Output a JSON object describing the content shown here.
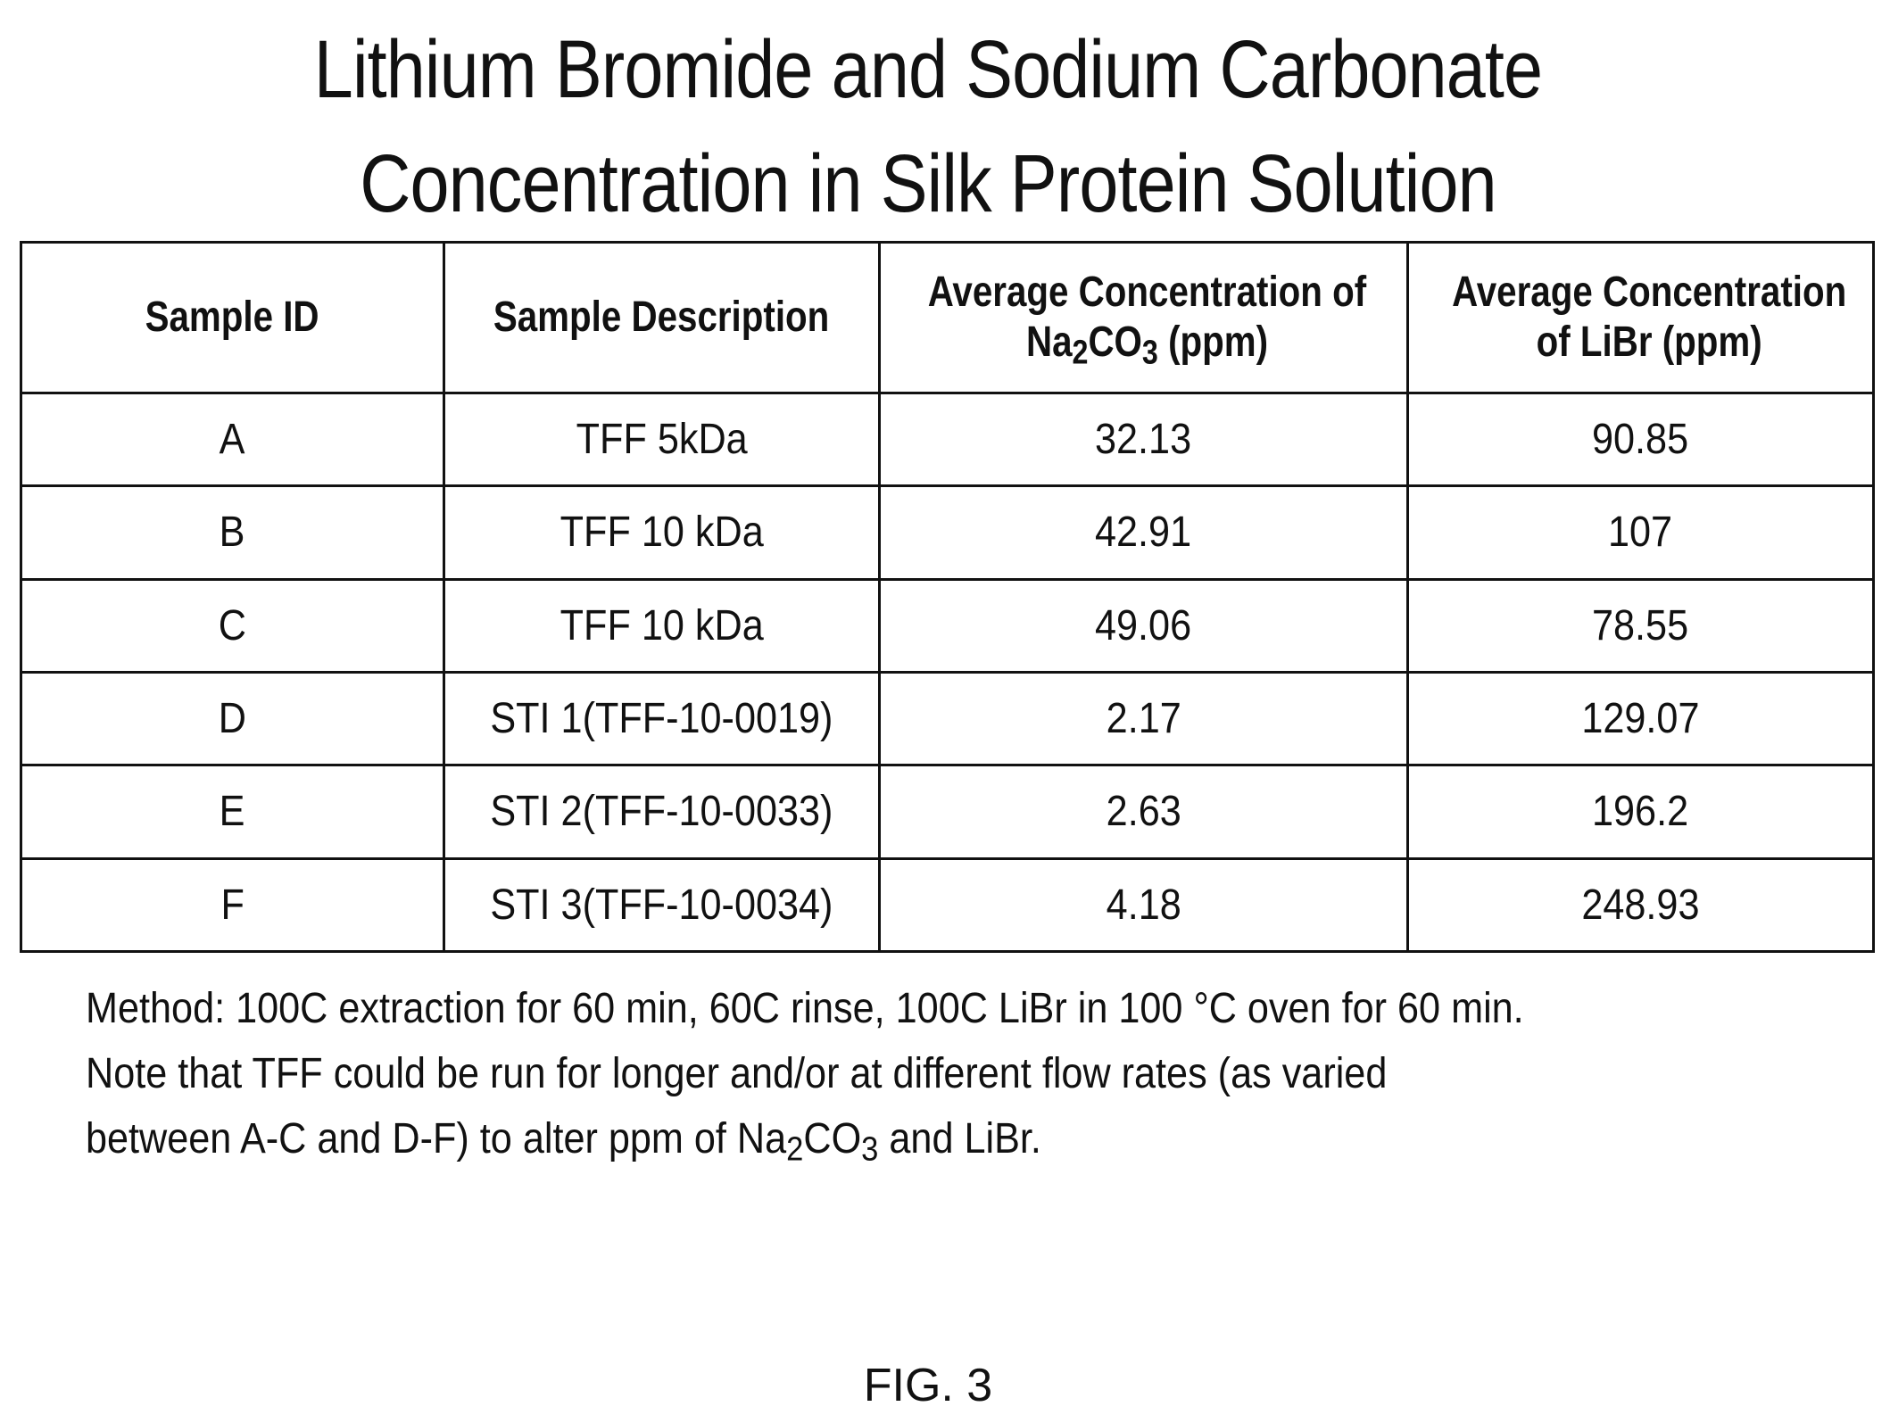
{
  "title": {
    "line1": "Lithium Bromide and Sodium Carbonate",
    "line2": "Concentration in Silk Protein Solution"
  },
  "table": {
    "headers": {
      "col1": "Sample  ID",
      "col2": "Sample  Description",
      "col3_line1": "Average  Concentration  of",
      "col3_pre": "Na",
      "col3_sub1": "2",
      "col3_mid": "CO",
      "col3_sub2": "3",
      "col3_post": " (ppm)",
      "col4_line1": "Average  Concentration",
      "col4_line2": "of  LiBr (ppm)"
    },
    "rows": [
      {
        "id": "A",
        "description": "TFF 5kDa",
        "na2co3": "32.13",
        "libr": "90.85"
      },
      {
        "id": "B",
        "description": "TFF 10 kDa",
        "na2co3": "42.91",
        "libr": "107"
      },
      {
        "id": "C",
        "description": "TFF 10 kDa",
        "na2co3": "49.06",
        "libr": "78.55"
      },
      {
        "id": "D",
        "description": "STI 1(TFF-10-0019)",
        "na2co3": "2.17",
        "libr": "129.07"
      },
      {
        "id": "E",
        "description": "STI 2(TFF-10-0033)",
        "na2co3": "2.63",
        "libr": "196.2"
      },
      {
        "id": "F",
        "description": "STI 3(TFF-10-0034)",
        "na2co3": "4.18",
        "libr": "248.93"
      }
    ]
  },
  "note": {
    "line1": "Method: 100C extraction for 60 min, 60C rinse, 100C LiBr in 100 °C oven for 60 min.",
    "line2": "Note that TFF could be run for longer and/or at different flow rates (as varied",
    "line3_pre": "between A-C and D-F) to alter ppm of Na",
    "line3_sub1": "2",
    "line3_mid": "CO",
    "line3_sub2": "3",
    "line3_post": " and LiBr."
  },
  "figure_label": "FIG. 3"
}
